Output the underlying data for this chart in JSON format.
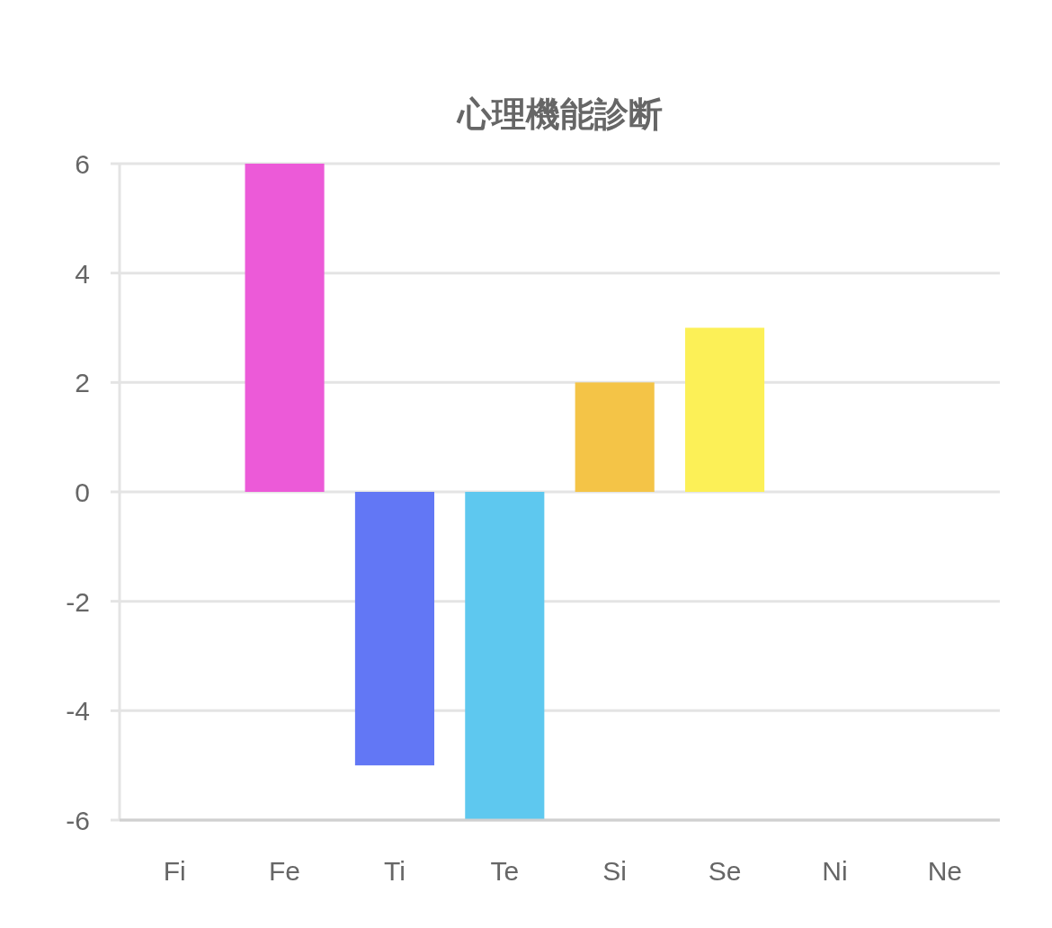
{
  "chart_data": {
    "type": "bar",
    "title": "心理機能診断",
    "categories": [
      "Fi",
      "Fe",
      "Ti",
      "Te",
      "Si",
      "Se",
      "Ni",
      "Ne"
    ],
    "values": [
      0,
      6,
      -5,
      -6,
      2,
      3,
      0,
      0
    ],
    "colors": [
      null,
      "#ec5ad8",
      "#6277f5",
      "#5ec8ef",
      "#f4c447",
      "#fcf057",
      null,
      null
    ],
    "ylim": [
      -6,
      6
    ],
    "yticks": [
      -6,
      -4,
      -2,
      0,
      2,
      4,
      6
    ],
    "grid": "y"
  }
}
